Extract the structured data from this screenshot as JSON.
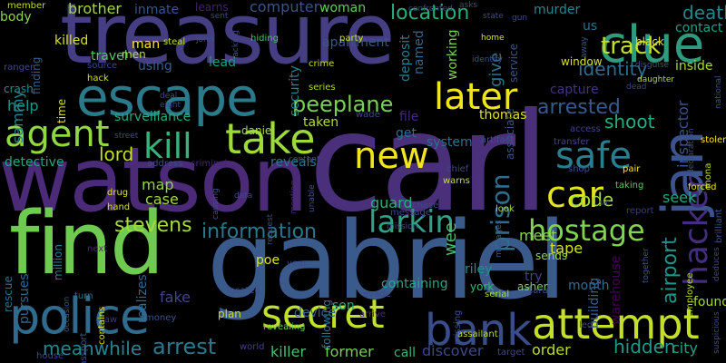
{
  "words": [
    {
      "text": "carl",
      "color": "#4a2f7a"
    },
    {
      "text": "gabriel",
      "color": "#3b5a8c"
    },
    {
      "text": "treasure",
      "color": "#453e82"
    },
    {
      "text": "watson",
      "color": "#4b2a78"
    },
    {
      "text": "find",
      "color": "#6ecb4f"
    },
    {
      "text": "escape",
      "color": "#2a7a8c"
    },
    {
      "text": "police",
      "color": "#2f6b8e"
    },
    {
      "text": "jan",
      "color": "#3b5490"
    },
    {
      "text": "clue",
      "color": "#2f9b7e"
    },
    {
      "text": "take",
      "color": "#9ed93b"
    },
    {
      "text": "kill",
      "color": "#38b27a"
    },
    {
      "text": "agent",
      "color": "#8fd744"
    },
    {
      "text": "bank",
      "color": "#3a4d8b"
    },
    {
      "text": "attempt",
      "color": "#c3df2b"
    },
    {
      "text": "secret",
      "color": "#bfe12d"
    },
    {
      "text": "hacker",
      "color": "#442d80"
    },
    {
      "text": "larkin",
      "color": "#31a187"
    },
    {
      "text": "later",
      "color": "#f0e51c"
    },
    {
      "text": "new",
      "color": "#f2e51d"
    },
    {
      "text": "car",
      "color": "#e5e419"
    },
    {
      "text": "safe",
      "color": "#2a7d8e"
    },
    {
      "text": "hostage",
      "color": "#7fd34e"
    },
    {
      "text": "peeplane",
      "color": "#77d153"
    },
    {
      "text": "arrest",
      "color": "#2b788e"
    },
    {
      "text": "meanwhile",
      "color": "#25858e"
    },
    {
      "text": "prison",
      "color": "#2f6c8e"
    },
    {
      "text": "information",
      "color": "#2a788e"
    },
    {
      "text": "stevens",
      "color": "#a5db36"
    },
    {
      "text": "arrested",
      "color": "#38598c"
    },
    {
      "text": "identity",
      "color": "#2f6c8e"
    },
    {
      "text": "track",
      "color": "#c5e021"
    },
    {
      "text": "location",
      "color": "#27ad81"
    },
    {
      "text": "death",
      "color": "#25848e"
    },
    {
      "text": "airport",
      "color": "#21918c"
    },
    {
      "text": "inspector",
      "color": "#3a538b"
    },
    {
      "text": "code",
      "color": "#a0da39"
    },
    {
      "text": "lord",
      "color": "#c2df23"
    },
    {
      "text": "shoot",
      "color": "#25ac82"
    },
    {
      "text": "hidden",
      "color": "#1f998a"
    },
    {
      "text": "killer",
      "color": "#46c06f"
    },
    {
      "text": "former",
      "color": "#73d056"
    },
    {
      "text": "city",
      "color": "#20a386"
    },
    {
      "text": "order",
      "color": "#b8de29"
    },
    {
      "text": "discover",
      "color": "#3e4989"
    },
    {
      "text": "sammy",
      "color": "#25848e"
    },
    {
      "text": "help",
      "color": "#1f948c"
    },
    {
      "text": "map",
      "color": "#93d741"
    },
    {
      "text": "case",
      "color": "#9fda3a"
    },
    {
      "text": "guard",
      "color": "#29af7f"
    },
    {
      "text": "wee",
      "color": "#44bf70"
    },
    {
      "text": "give",
      "color": "#2c738e"
    },
    {
      "text": "meet",
      "color": "#8bd646"
    },
    {
      "text": "tape",
      "color": "#d2e21b"
    },
    {
      "text": "seek",
      "color": "#22a884"
    },
    {
      "text": "fake",
      "color": "#3f4788"
    },
    {
      "text": "poe",
      "color": "#dde318"
    },
    {
      "text": "son",
      "color": "#22a785"
    },
    {
      "text": "month",
      "color": "#2d708e"
    },
    {
      "text": "device",
      "color": "#355f8d"
    },
    {
      "text": "warehouse",
      "color": "#440154"
    },
    {
      "text": "found",
      "color": "#a0da39"
    },
    {
      "text": "reveals",
      "color": "#2a768e"
    },
    {
      "text": "computer",
      "color": "#3b528b"
    },
    {
      "text": "woman",
      "color": "#63cb5f"
    },
    {
      "text": "brother",
      "color": "#a2da37"
    },
    {
      "text": "inmate",
      "color": "#3a548c"
    },
    {
      "text": "learns",
      "color": "#481f70"
    },
    {
      "text": "murder",
      "color": "#238a8d"
    },
    {
      "text": "killed",
      "color": "#dae319"
    },
    {
      "text": "travel",
      "color": "#56c667"
    },
    {
      "text": "using",
      "color": "#365d8d"
    },
    {
      "text": "lead",
      "color": "#1f9e89"
    },
    {
      "text": "man",
      "color": "#fde725"
    },
    {
      "text": "men",
      "color": "#b5de2b"
    },
    {
      "text": "surveillance",
      "color": "#25ab82"
    },
    {
      "text": "taken",
      "color": "#b2dd2d"
    },
    {
      "text": "thomas",
      "color": "#e2e418"
    },
    {
      "text": "system",
      "color": "#2d708e"
    },
    {
      "text": "file",
      "color": "#482878"
    },
    {
      "text": "get",
      "color": "#2e6e8e"
    },
    {
      "text": "security",
      "color": "#27808e"
    },
    {
      "text": "apartment",
      "color": "#3b528b"
    },
    {
      "text": "deposit",
      "color": "#287c8e"
    },
    {
      "text": "named",
      "color": "#31678e"
    },
    {
      "text": "working",
      "color": "#7ad151"
    },
    {
      "text": "capture",
      "color": "#46337e"
    },
    {
      "text": "inside",
      "color": "#a5db36"
    },
    {
      "text": "contact",
      "color": "#1fa188"
    },
    {
      "text": "us",
      "color": "#2e6f8e"
    },
    {
      "text": "service",
      "color": "#3b528b"
    },
    {
      "text": "detective",
      "color": "#22a785"
    },
    {
      "text": "finding",
      "color": "#365c8d"
    },
    {
      "text": "pursues",
      "color": "#31688e"
    },
    {
      "text": "million",
      "color": "#287d8e"
    },
    {
      "text": "rescue",
      "color": "#2c728e"
    },
    {
      "text": "containing",
      "color": "#22a884"
    },
    {
      "text": "following",
      "color": "#2c738e"
    },
    {
      "text": "building",
      "color": "#34618d"
    },
    {
      "text": "riley",
      "color": "#21918c"
    },
    {
      "text": "york",
      "color": "#37b878"
    },
    {
      "text": "try",
      "color": "#414487"
    },
    {
      "text": "sends",
      "color": "#8fd744"
    },
    {
      "text": "call",
      "color": "#35b779"
    },
    {
      "text": "realizes",
      "color": "#31688e"
    },
    {
      "text": "plan",
      "color": "#c8e020"
    },
    {
      "text": "body",
      "color": "#8bd646"
    },
    {
      "text": "crash",
      "color": "#218e8d"
    },
    {
      "text": "time",
      "color": "#d8e219"
    },
    {
      "text": "daniel",
      "color": "#a2da37"
    },
    {
      "text": "black",
      "color": "#dde318"
    },
    {
      "text": "window",
      "color": "#d5e21a"
    },
    {
      "text": "member",
      "color": "#c0df25"
    },
    {
      "text": "hack",
      "color": "#d0e11c"
    },
    {
      "text": "source",
      "color": "#3e4989"
    },
    {
      "text": "steal",
      "color": "#c2df23"
    },
    {
      "text": "hiding",
      "color": "#4ac16d"
    },
    {
      "text": "party",
      "color": "#d2e21b"
    },
    {
      "text": "crime",
      "color": "#c5e021"
    },
    {
      "text": "series",
      "color": "#addc30"
    },
    {
      "text": "wade",
      "color": "#3e4a89"
    },
    {
      "text": "associate",
      "color": "#3b528b"
    },
    {
      "text": "chief",
      "color": "#3f4889"
    },
    {
      "text": "warns",
      "color": "#c5e021"
    },
    {
      "text": "drug",
      "color": "#dde318"
    },
    {
      "text": "criminal",
      "color": "#482576"
    },
    {
      "text": "address",
      "color": "#3e4a89"
    },
    {
      "text": "report",
      "color": "#453781"
    },
    {
      "text": "stolen",
      "color": "#fde725"
    },
    {
      "text": "mona",
      "color": "#b8de29"
    },
    {
      "text": "employee",
      "color": "#bade28"
    },
    {
      "text": "brilliant",
      "color": "#3b528b"
    },
    {
      "text": "pair",
      "color": "#fde725"
    },
    {
      "text": "forced",
      "color": "#e5e419"
    },
    {
      "text": "shop",
      "color": "#3b528b"
    },
    {
      "text": "taking",
      "color": "#5ec962"
    },
    {
      "text": "asher",
      "color": "#7ad151"
    },
    {
      "text": "sara",
      "color": "#3e4a89"
    },
    {
      "text": "serial",
      "color": "#addc30"
    },
    {
      "text": "evade",
      "color": "#3e4989"
    },
    {
      "text": "arrive",
      "color": "#482878"
    },
    {
      "text": "revealing",
      "color": "#70cf57"
    },
    {
      "text": "assailant",
      "color": "#bddf26"
    },
    {
      "text": "located",
      "color": "#3b528b"
    },
    {
      "text": "year",
      "color": "#3e4989"
    },
    {
      "text": "money",
      "color": "#3b528b"
    },
    {
      "text": "law",
      "color": "#453781"
    },
    {
      "text": "world",
      "color": "#414487"
    },
    {
      "text": "house",
      "color": "#3e4989"
    },
    {
      "text": "passport",
      "color": "#3b528b"
    },
    {
      "text": "hand",
      "color": "#d8e219"
    },
    {
      "text": "next",
      "color": "#482878"
    },
    {
      "text": "contains",
      "color": "#dde318"
    },
    {
      "text": "turn",
      "color": "#2c728e"
    },
    {
      "text": "occasion",
      "color": "#3b528b"
    },
    {
      "text": "ranger",
      "color": "#3e4989"
    },
    {
      "text": "target",
      "color": "#3e4989"
    },
    {
      "text": "missing",
      "color": "#3b528b"
    },
    {
      "text": "led",
      "color": "#414487"
    },
    {
      "text": "chase",
      "color": "#3e4989"
    },
    {
      "text": "message",
      "color": "#3e4989"
    },
    {
      "text": "look",
      "color": "#addc30"
    },
    {
      "text": "manages",
      "color": "#3b528b"
    },
    {
      "text": "transfer",
      "color": "#414487"
    },
    {
      "text": "access",
      "color": "#414487"
    },
    {
      "text": "artifact",
      "color": "#3b528b"
    },
    {
      "text": "tracking",
      "color": "#3e4989"
    },
    {
      "text": "confronted",
      "color": "#414487"
    },
    {
      "text": "sent",
      "color": "#3e4989"
    },
    {
      "text": "john",
      "color": "#3b528b"
    },
    {
      "text": "deal",
      "color": "#3e4989"
    },
    {
      "text": "eight",
      "color": "#414487"
    },
    {
      "text": "home",
      "color": "#d8e219"
    },
    {
      "text": "identify",
      "color": "#3b528b"
    },
    {
      "text": "state",
      "color": "#3e4989"
    },
    {
      "text": "gun",
      "color": "#3e4989"
    },
    {
      "text": "disguise",
      "color": "#3b528b"
    },
    {
      "text": "daughter",
      "color": "#b2dd2d"
    },
    {
      "text": "national",
      "color": "#3b528b"
    },
    {
      "text": "declaration",
      "color": "#3e4989"
    },
    {
      "text": "dead",
      "color": "#414487"
    },
    {
      "text": "away",
      "color": "#3b528b"
    },
    {
      "text": "street",
      "color": "#3e4989"
    },
    {
      "text": "data",
      "color": "#3e4989"
    },
    {
      "text": "causing",
      "color": "#3b528b"
    },
    {
      "text": "request",
      "color": "#3e4989"
    },
    {
      "text": "unable",
      "color": "#3b528b"
    },
    {
      "text": "content",
      "color": "#3e4989"
    },
    {
      "text": "meeting",
      "color": "#482878"
    },
    {
      "text": "together",
      "color": "#3b528b"
    },
    {
      "text": "deduces",
      "color": "#414487"
    },
    {
      "text": "suspicious",
      "color": "#3e4989"
    },
    {
      "text": "sir",
      "color": "#3e4989"
    },
    {
      "text": "mission",
      "color": "#3e4989"
    },
    {
      "text": "asks",
      "color": "#3e4989"
    }
  ]
}
